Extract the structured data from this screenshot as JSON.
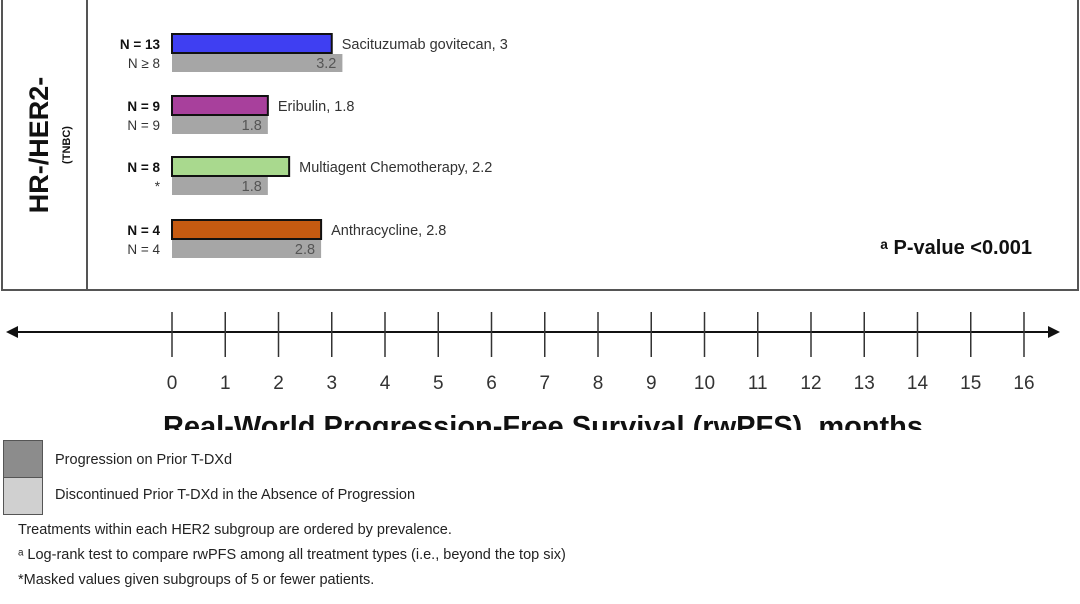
{
  "chart_data": {
    "type": "bar",
    "orientation": "horizontal",
    "panel_label": "HR-/HER2-",
    "panel_sublabel": "(TNBC)",
    "xlabel": "Real-World Progression-Free Survival (rwPFS), months",
    "xlim": [
      0,
      16
    ],
    "xticks": [
      "0",
      "1",
      "2",
      "3",
      "4",
      "5",
      "6",
      "7",
      "8",
      "9",
      "10",
      "11",
      "12",
      "13",
      "14",
      "15",
      "16"
    ],
    "grid": false,
    "categories": [
      "Sacituzumab govitecan",
      "Eribulin",
      "Multiagent Chemotherapy",
      "Anthracycline"
    ],
    "series": [
      {
        "name": "Progression on Prior T-DXd",
        "values": [
          3,
          1.8,
          2.2,
          2.8
        ],
        "n_labels": [
          "N = 13",
          "N = 9",
          "N = 8",
          "N = 4"
        ],
        "bar_labels": [
          "Sacituzumab govitecan, 3",
          "Eribulin, 1.8",
          "Multiagent Chemotherapy, 2.2",
          "Anthracycline, 2.8"
        ],
        "colors": [
          "#3f3ff2",
          "#a8409c",
          "#a9d98e",
          "#c55a11"
        ]
      },
      {
        "name": "Discontinued Prior T-DXd in the Absence of Progression",
        "values": [
          3.2,
          1.8,
          1.8,
          2.8
        ],
        "n_labels": [
          "N ≥ 8",
          "N = 9",
          "*",
          "N = 4"
        ],
        "bar_labels": [
          "3.2",
          "1.8",
          "1.8",
          "2.8"
        ],
        "color": "#a6a6a6"
      }
    ],
    "annotation": "ᵃ P-value <0.001",
    "legend_placement": "bottom-left"
  },
  "legend": {
    "items": [
      {
        "label": "Progression on Prior T-DXd",
        "color": "#8c8c8c"
      },
      {
        "label": "Discontinued Prior T-DXd in the Absence of Progression",
        "color": "#d0d0d0"
      }
    ]
  },
  "footnotes": [
    "Treatments within each HER2 subgroup are ordered by prevalence.",
    "ᵃ Log-rank test to compare rwPFS among all treatment types (i.e., beyond the top six)",
    "*Masked values given subgroups of 5 or fewer patients."
  ]
}
